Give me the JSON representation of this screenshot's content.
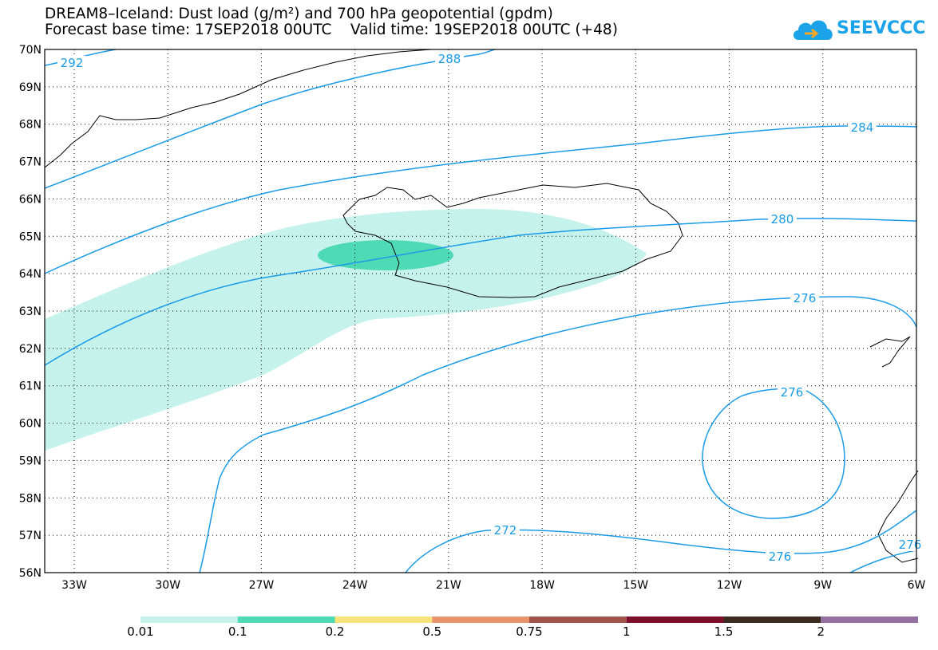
{
  "title_line1": "DREAM8–Iceland: Dust load (g/m²) and 700 hPa geopotential (gpdm)",
  "title_line2": "Forecast base time: 17SEP2018 00UTC    Valid time: 19SEP2018 00UTC (+48)",
  "logo": {
    "text": "SEEVCCC",
    "icon": "cloud-arrow-icon",
    "color": "#1aa3e8"
  },
  "map": {
    "lat_labels": [
      "70N",
      "69N",
      "68N",
      "67N",
      "66N",
      "65N",
      "64N",
      "63N",
      "62N",
      "61N",
      "60N",
      "59N",
      "58N",
      "57N",
      "56N"
    ],
    "lon_labels": [
      "33W",
      "30W",
      "27W",
      "24W",
      "21W",
      "18W",
      "15W",
      "12W",
      "9W",
      "6W"
    ],
    "contour_labels": [
      "292",
      "288",
      "284",
      "280",
      "276",
      "276",
      "272",
      "276",
      "276"
    ],
    "contour_color": "#1a9be8",
    "coast_color": "#000000",
    "dust_colors": {
      "low": "#c6f2ec",
      "mid": "#4fdab6"
    }
  },
  "colorbar": {
    "labels": [
      "0.01",
      "0.1",
      "0.2",
      "0.5",
      "0.75",
      "1",
      "1.5",
      "2"
    ],
    "colors": [
      "#c6f2ec",
      "#4fdab6",
      "#f7e57b",
      "#e8956b",
      "#a3544a",
      "#7d0f2b",
      "#3a2a1f",
      "#93709f"
    ]
  }
}
